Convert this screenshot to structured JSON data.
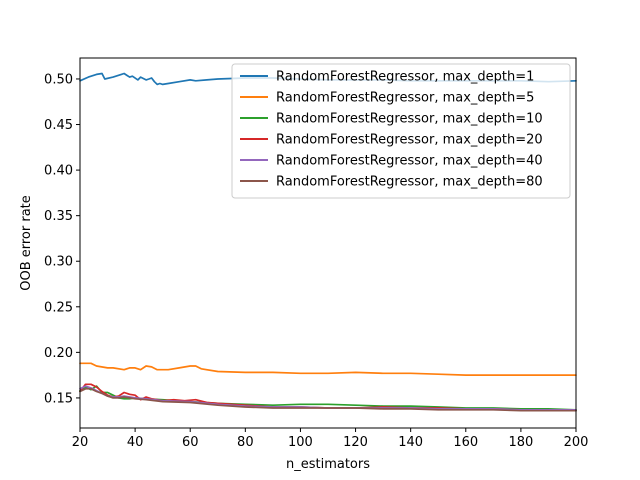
{
  "chart_data": {
    "type": "line",
    "xlabel": "n_estimators",
    "ylabel": "OOB error rate",
    "xlim": [
      20,
      200
    ],
    "ylim": [
      0.117,
      0.523
    ],
    "xticks": [
      20,
      40,
      60,
      80,
      100,
      120,
      140,
      160,
      180,
      200
    ],
    "yticks": [
      0.15,
      0.2,
      0.25,
      0.3,
      0.35,
      0.4,
      0.45,
      0.5
    ],
    "ytick_labels": [
      "0.15",
      "0.20",
      "0.25",
      "0.30",
      "0.35",
      "0.40",
      "0.45",
      "0.50"
    ],
    "xtick_labels": [
      "20",
      "40",
      "60",
      "80",
      "100",
      "120",
      "140",
      "160",
      "180",
      "200"
    ],
    "grid": false,
    "legend_position": "top-right",
    "series": [
      {
        "name": "RandomForestRegressor, max_depth=1",
        "color": "#1f77b4",
        "x": [
          20,
          23,
          26,
          28,
          29,
          32,
          35,
          36,
          38,
          39,
          41,
          42,
          44,
          45,
          46,
          47,
          48,
          49,
          50,
          52,
          56,
          60,
          62,
          66,
          70,
          80,
          90,
          100,
          110,
          120,
          130,
          140,
          150,
          160,
          170,
          180,
          190,
          200
        ],
        "values": [
          0.498,
          0.502,
          0.505,
          0.506,
          0.5,
          0.502,
          0.505,
          0.506,
          0.502,
          0.503,
          0.499,
          0.502,
          0.499,
          0.5,
          0.501,
          0.497,
          0.494,
          0.495,
          0.494,
          0.495,
          0.497,
          0.499,
          0.498,
          0.499,
          0.5,
          0.501,
          0.501,
          0.5,
          0.499,
          0.499,
          0.499,
          0.498,
          0.498,
          0.498,
          0.498,
          0.498,
          0.497,
          0.498
        ]
      },
      {
        "name": "RandomForestRegressor, max_depth=5",
        "color": "#ff7f0e",
        "x": [
          20,
          24,
          26,
          30,
          32,
          36,
          38,
          40,
          42,
          44,
          46,
          48,
          52,
          56,
          60,
          62,
          64,
          70,
          80,
          90,
          100,
          110,
          120,
          130,
          140,
          150,
          160,
          170,
          180,
          190,
          200
        ],
        "values": [
          0.188,
          0.188,
          0.185,
          0.183,
          0.183,
          0.181,
          0.183,
          0.183,
          0.181,
          0.185,
          0.184,
          0.181,
          0.181,
          0.183,
          0.185,
          0.185,
          0.182,
          0.179,
          0.178,
          0.178,
          0.177,
          0.177,
          0.178,
          0.177,
          0.177,
          0.176,
          0.175,
          0.175,
          0.175,
          0.175,
          0.175
        ]
      },
      {
        "name": "RandomForestRegressor, max_depth=10",
        "color": "#2ca02c",
        "x": [
          20,
          22,
          24,
          26,
          28,
          30,
          32,
          34,
          36,
          38,
          40,
          44,
          50,
          60,
          70,
          80,
          90,
          100,
          110,
          120,
          130,
          140,
          150,
          160,
          170,
          180,
          190,
          200
        ],
        "values": [
          0.158,
          0.162,
          0.159,
          0.163,
          0.156,
          0.156,
          0.153,
          0.15,
          0.149,
          0.149,
          0.15,
          0.149,
          0.148,
          0.146,
          0.144,
          0.143,
          0.142,
          0.143,
          0.143,
          0.142,
          0.141,
          0.141,
          0.14,
          0.139,
          0.139,
          0.138,
          0.138,
          0.137
        ]
      },
      {
        "name": "RandomForestRegressor, max_depth=20",
        "color": "#d62728",
        "x": [
          20,
          22,
          24,
          26,
          28,
          30,
          32,
          34,
          36,
          38,
          40,
          42,
          44,
          46,
          48,
          50,
          54,
          58,
          62,
          66,
          70,
          80,
          90,
          100,
          110,
          120,
          130,
          140,
          150,
          160,
          170,
          180,
          190,
          200
        ],
        "values": [
          0.157,
          0.165,
          0.165,
          0.162,
          0.157,
          0.153,
          0.151,
          0.152,
          0.156,
          0.154,
          0.153,
          0.148,
          0.151,
          0.149,
          0.148,
          0.147,
          0.148,
          0.147,
          0.148,
          0.145,
          0.144,
          0.142,
          0.14,
          0.14,
          0.139,
          0.139,
          0.14,
          0.139,
          0.139,
          0.138,
          0.138,
          0.137,
          0.137,
          0.136
        ]
      },
      {
        "name": "RandomForestRegressor, max_depth=40",
        "color": "#9467bd",
        "x": [
          20,
          22,
          24,
          26,
          28,
          30,
          32,
          34,
          36,
          38,
          40,
          44,
          50,
          60,
          70,
          80,
          90,
          100,
          110,
          120,
          130,
          140,
          150,
          160,
          170,
          180,
          190,
          200
        ],
        "values": [
          0.16,
          0.163,
          0.161,
          0.158,
          0.155,
          0.152,
          0.151,
          0.151,
          0.152,
          0.151,
          0.15,
          0.149,
          0.147,
          0.146,
          0.143,
          0.141,
          0.14,
          0.14,
          0.139,
          0.139,
          0.139,
          0.139,
          0.138,
          0.138,
          0.138,
          0.137,
          0.137,
          0.137
        ]
      },
      {
        "name": "RandomForestRegressor, max_depth=80",
        "color": "#8c564b",
        "x": [
          20,
          22,
          24,
          26,
          28,
          30,
          32,
          34,
          36,
          38,
          40,
          44,
          50,
          60,
          70,
          80,
          90,
          100,
          110,
          120,
          130,
          140,
          150,
          160,
          170,
          180,
          190,
          200
        ],
        "values": [
          0.157,
          0.16,
          0.16,
          0.157,
          0.155,
          0.152,
          0.15,
          0.15,
          0.151,
          0.15,
          0.149,
          0.148,
          0.146,
          0.145,
          0.142,
          0.14,
          0.139,
          0.139,
          0.139,
          0.139,
          0.138,
          0.138,
          0.137,
          0.137,
          0.137,
          0.136,
          0.136,
          0.136
        ]
      }
    ]
  }
}
